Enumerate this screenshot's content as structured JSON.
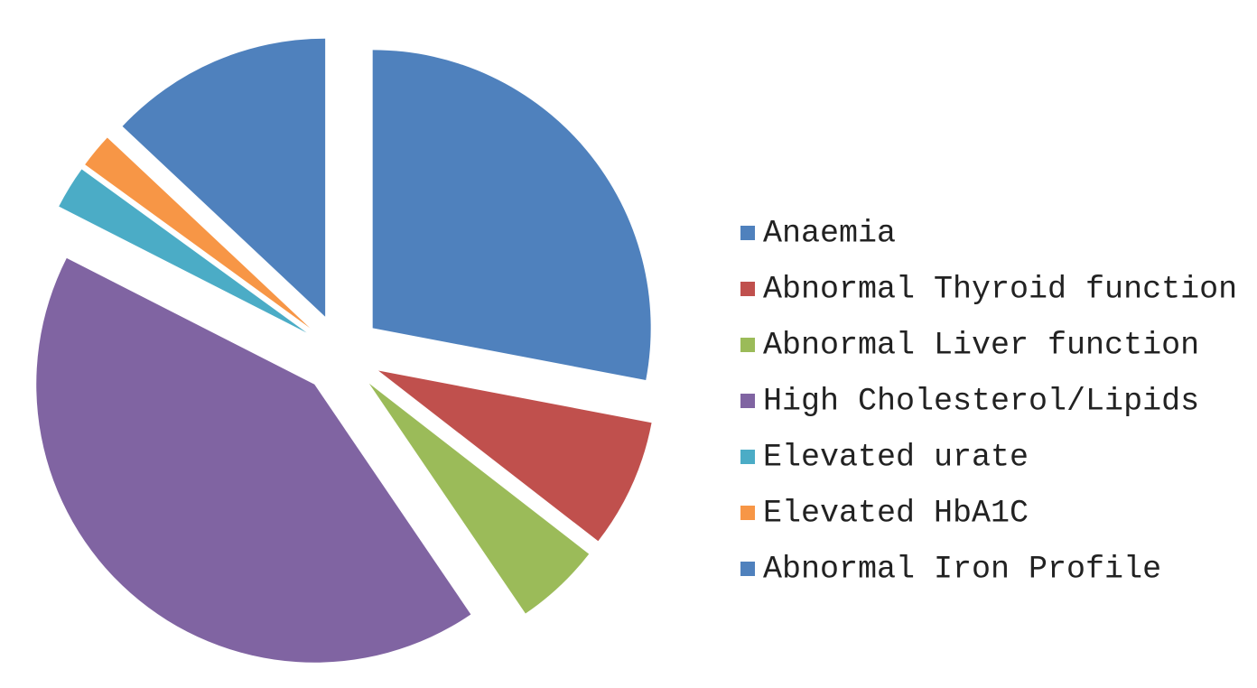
{
  "chart_data": {
    "type": "pie",
    "categories": [
      "Anaemia",
      "Abnormal Thyroid function",
      "Abnormal Liver function",
      "High Cholesterol/Lipids",
      "Elevated urate",
      "Elevated HbA1C",
      "Abnormal Iron Profile"
    ],
    "values": [
      28,
      7.5,
      5,
      42,
      2.5,
      2,
      13
    ],
    "colors": [
      "#4f81bd",
      "#c0504d",
      "#9bbb59",
      "#8064a2",
      "#4bacc6",
      "#f79646",
      "#4f81bd"
    ],
    "legend": "right"
  }
}
